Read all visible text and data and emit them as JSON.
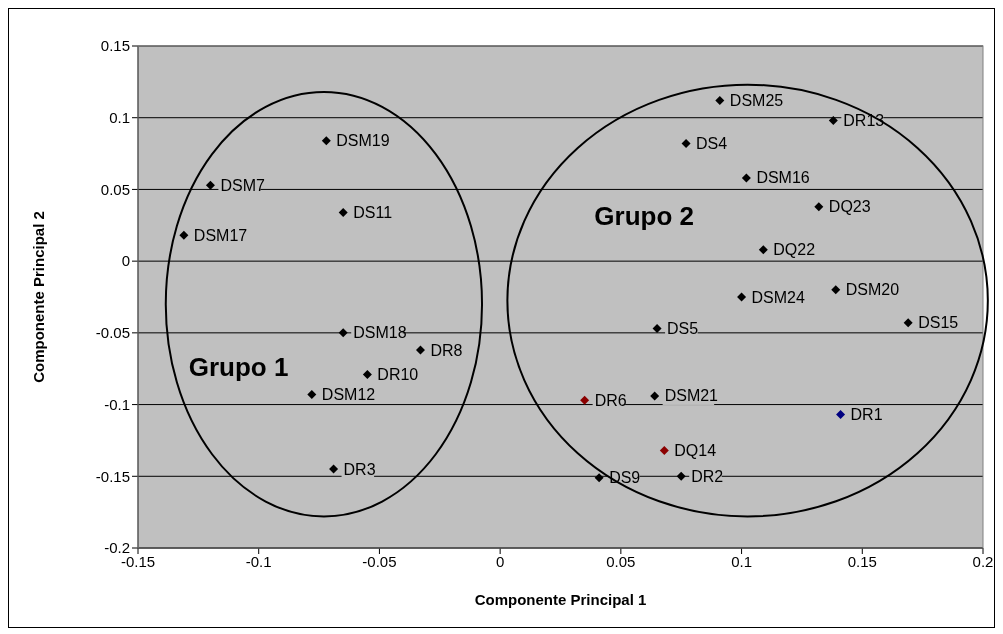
{
  "chart_data": {
    "type": "scatter",
    "xlabel": "Componente Principal 1",
    "ylabel": "Componente Principal 2",
    "xlim": [
      -0.15,
      0.2
    ],
    "xticks": [
      -0.15,
      -0.1,
      -0.05,
      0,
      0.05,
      0.1,
      0.15,
      0.2
    ],
    "ylim": [
      -0.2,
      0.15
    ],
    "yticks": [
      -0.2,
      -0.15,
      -0.1,
      -0.05,
      0,
      0.05,
      0.1,
      0.15
    ],
    "grid": "y",
    "marker": "diamond",
    "legend": false,
    "series": [
      {
        "x": [
          -0.072,
          -0.12,
          -0.065,
          -0.131,
          -0.065,
          -0.033,
          -0.055,
          -0.078,
          -0.069,
          0.091,
          0.138,
          0.077,
          0.102,
          0.132,
          0.109,
          0.139,
          0.1,
          0.169,
          0.065,
          0.064,
          0.035,
          0.141,
          0.068,
          0.041,
          0.075
        ],
        "values": [
          0.084,
          0.053,
          0.034,
          0.018,
          -0.05,
          -0.062,
          -0.079,
          -0.093,
          -0.145,
          0.112,
          0.098,
          0.082,
          0.058,
          0.038,
          0.008,
          -0.02,
          -0.025,
          -0.043,
          -0.047,
          -0.094,
          -0.097,
          -0.107,
          -0.132,
          -0.151,
          -0.15
        ],
        "value_labels": [
          "DSM19",
          "DSM7",
          "DS11",
          "DSM17",
          "DSM18",
          "DR8",
          "DR10",
          "DSM12",
          "DR3",
          "DSM25",
          "DR13",
          "DS4",
          "DSM16",
          "DQ23",
          "DQ22",
          "DSM20",
          "DSM24",
          "DS15",
          "DS5",
          "DSM21",
          "DR6",
          "DR1",
          "DQ14",
          "DS9",
          "DR2"
        ],
        "colors": [
          "#000000",
          "#000000",
          "#000000",
          "#000000",
          "#000000",
          "#000000",
          "#000000",
          "#000000",
          "#000000",
          "#000000",
          "#000000",
          "#000000",
          "#000000",
          "#000000",
          "#000000",
          "#000000",
          "#000000",
          "#000000",
          "#000000",
          "#000000",
          "#8b0000",
          "#000080",
          "#8b0000",
          "#000000",
          "#000000"
        ]
      }
    ],
    "annotations": [
      "Grupo 1",
      "Grupo 2"
    ]
  }
}
